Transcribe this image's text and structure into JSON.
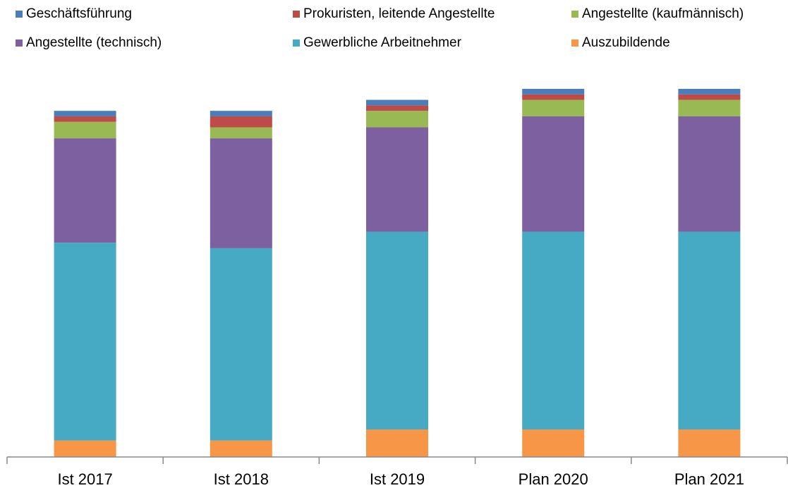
{
  "chart_data": {
    "type": "stacked-bar",
    "categories": [
      "Ist 2017",
      "Ist 2018",
      "Ist 2019",
      "Plan 2020",
      "Plan 2021"
    ],
    "series": [
      {
        "name": "Geschäftsführung",
        "color": "#4a7ebb",
        "values": [
          1,
          1,
          1,
          1,
          1
        ]
      },
      {
        "name": "Prokuristen, leitende Angestellte",
        "color": "#be4b48",
        "values": [
          1,
          2,
          1,
          1,
          1
        ]
      },
      {
        "name": "Angestellte (kaufmännisch)",
        "color": "#98b954",
        "values": [
          3,
          2,
          3,
          3,
          3
        ]
      },
      {
        "name": "Angestellte (technisch)",
        "color": "#7d60a0",
        "values": [
          19,
          20,
          19,
          21,
          21
        ]
      },
      {
        "name": "Gewerbliche Arbeitnehmer",
        "color": "#46aac5",
        "values": [
          36,
          35,
          36,
          36,
          36
        ]
      },
      {
        "name": "Auszubildende",
        "color": "#f79646",
        "values": [
          3,
          3,
          5,
          5,
          5
        ]
      }
    ],
    "ylim": [
      0,
      67
    ],
    "legend": "top"
  }
}
